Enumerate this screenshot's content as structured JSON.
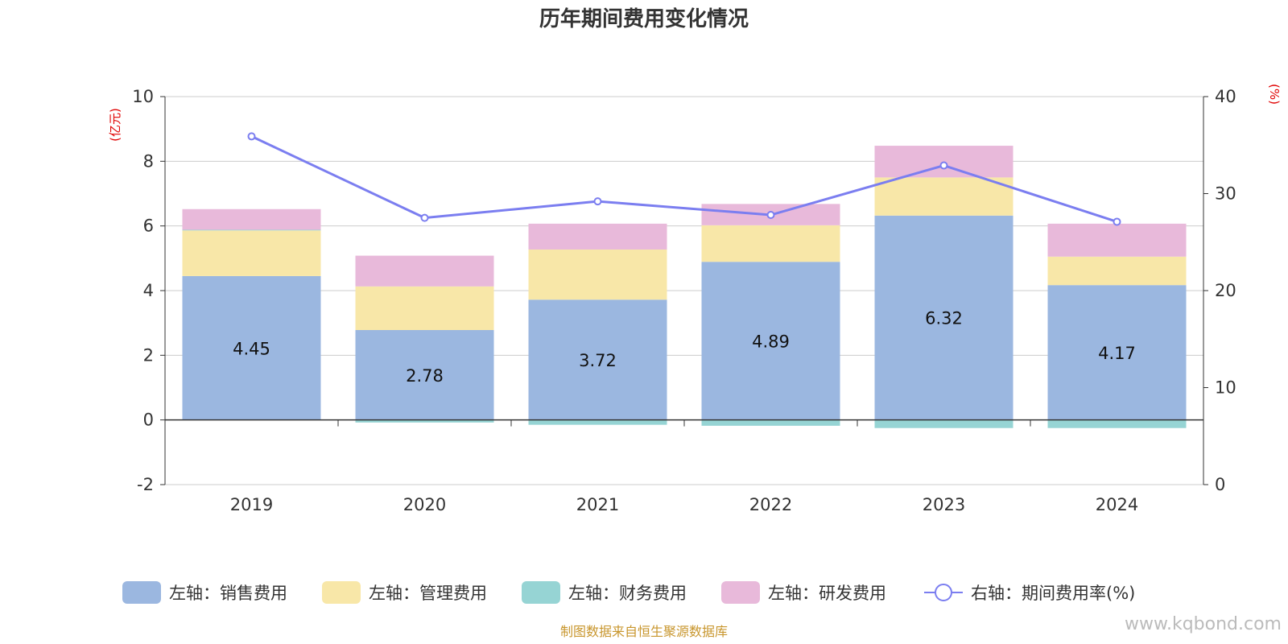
{
  "title": "历年期间费用变化情况",
  "left_unit": "(亿元)",
  "right_unit": "(%)",
  "source": "制图数据来自恒生聚源数据库",
  "watermark": "www.kqbond.com",
  "chart_data": {
    "type": "bar",
    "stacked": true,
    "categories": [
      "2019",
      "2020",
      "2021",
      "2022",
      "2023",
      "2024"
    ],
    "left_axis": {
      "ylim": [
        -2,
        10
      ],
      "ticks": [
        -2,
        0,
        2,
        4,
        6,
        8,
        10
      ]
    },
    "right_axis": {
      "ylim": [
        0,
        40
      ],
      "ticks": [
        0,
        10,
        20,
        30,
        40
      ]
    },
    "series": [
      {
        "name": "左轴：销售费用",
        "axis": "left",
        "color": "#9bb7e0",
        "values": [
          4.45,
          2.78,
          3.72,
          4.89,
          6.32,
          4.17
        ],
        "show_labels": true
      },
      {
        "name": "左轴：管理费用",
        "axis": "left",
        "color": "#f8e7a8",
        "values": [
          1.41,
          1.35,
          1.55,
          1.13,
          1.18,
          0.88
        ]
      },
      {
        "name": "左轴：财务费用",
        "axis": "left",
        "color": "#96d4d4",
        "values": [
          0.02,
          -0.08,
          -0.15,
          -0.18,
          -0.25,
          -0.25
        ]
      },
      {
        "name": "左轴：研发费用",
        "axis": "left",
        "color": "#e8b9da",
        "values": [
          0.64,
          0.95,
          0.8,
          0.66,
          0.98,
          1.02
        ]
      }
    ],
    "line": {
      "name": "右轴：期间费用率(%)",
      "axis": "right",
      "color": "#7b7ef0",
      "values": [
        35.9,
        27.5,
        29.2,
        27.8,
        32.9,
        27.1
      ]
    },
    "grid": true,
    "legend": "bottom"
  }
}
